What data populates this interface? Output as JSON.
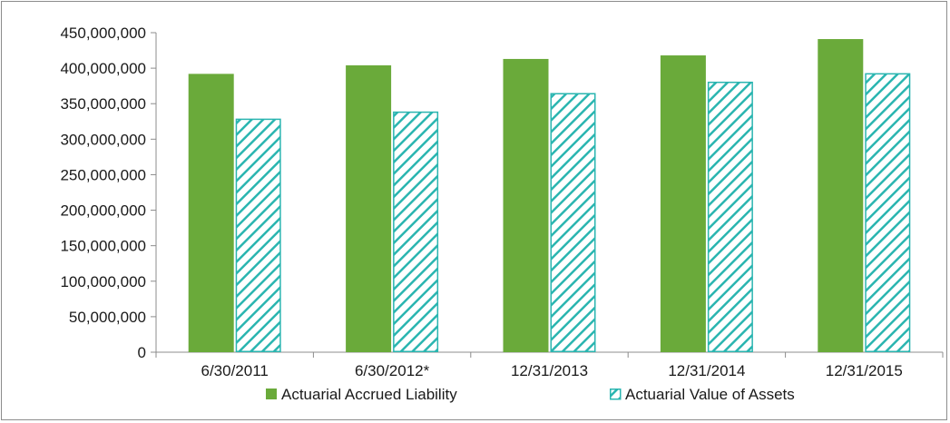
{
  "chart_data": {
    "type": "bar",
    "categories": [
      "6/30/2011",
      "6/30/2012*",
      "12/31/2013",
      "12/31/2014",
      "12/31/2015"
    ],
    "series": [
      {
        "name": "Actuarial Accrued Liability",
        "values": [
          392000000,
          404000000,
          413000000,
          418000000,
          441000000
        ],
        "color": "#6aaa3a",
        "fill": "solid"
      },
      {
        "name": "Actuarial Value of Assets",
        "values": [
          329000000,
          339000000,
          365000000,
          381000000,
          393000000
        ],
        "color": "#2ab5b0",
        "fill": "diagonal-hatch"
      }
    ],
    "ylim": [
      0,
      450000000
    ],
    "y_ticks": [
      "0",
      "50,000,000",
      "100,000,000",
      "150,000,000",
      "200,000,000",
      "250,000,000",
      "300,000,000",
      "350,000,000",
      "400,000,000",
      "450,000,000"
    ],
    "title": "",
    "xlabel": "",
    "ylabel": "",
    "grid": false,
    "legend_position": "bottom"
  }
}
